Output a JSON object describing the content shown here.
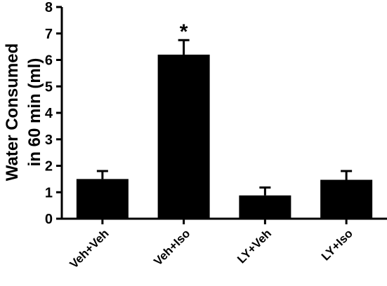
{
  "chart_data": {
    "type": "bar",
    "categories": [
      "Veh+Veh",
      "Veh+Iso",
      "LY+Veh",
      "LY+Iso"
    ],
    "values": [
      1.5,
      6.2,
      0.88,
      1.47
    ],
    "errors": [
      0.3,
      0.55,
      0.3,
      0.33
    ],
    "annotations": [
      "",
      "*",
      "",
      ""
    ],
    "ylabel_lines": [
      "Water Consumed",
      "in 60 min (ml)"
    ],
    "ylim": [
      0,
      8
    ],
    "yticks": [
      0,
      1,
      2,
      3,
      4,
      5,
      6,
      7,
      8
    ],
    "grid": false,
    "bar_color": "#000000"
  }
}
